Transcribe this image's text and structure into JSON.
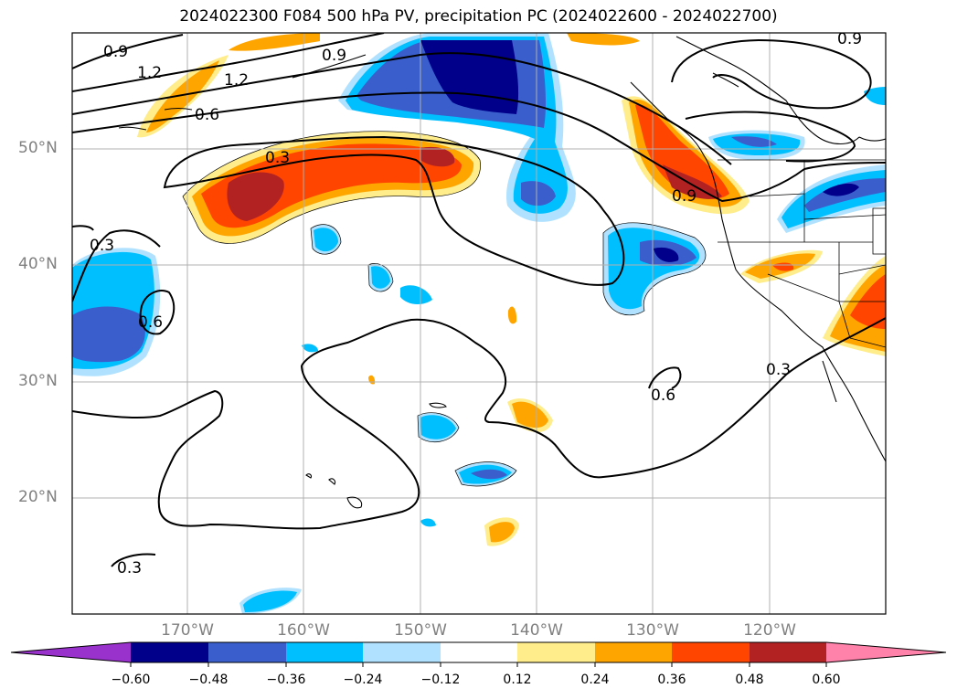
{
  "title": "2024022300 F084 500 hPa PV, precipitation PC (2024022600 - 2024022700)",
  "lat_labels": [
    "50°N",
    "40°N",
    "30°N",
    "20°N"
  ],
  "lon_labels": [
    "170°W",
    "160°W",
    "150°W",
    "140°W",
    "130°W",
    "120°W"
  ],
  "contour_labels": [
    "0.9",
    "1.2",
    "1.2",
    "0.9",
    "0.6",
    "0.3",
    "0.3",
    "0.6",
    "0.9",
    "0.9",
    "0.3",
    "0.6",
    "0.3"
  ],
  "colorbar": {
    "ticks": [
      "−0.60",
      "−0.48",
      "−0.36",
      "−0.24",
      "−0.12",
      "0.12",
      "0.24",
      "0.36",
      "0.48",
      "0.60"
    ],
    "colors": [
      "#9932cc",
      "#00008b",
      "#3a5fcd",
      "#00bfff",
      "#b0e2ff",
      "#ffffff",
      "#ffec8b",
      "#ffa500",
      "#ff4500",
      "#b22222",
      "#ff82ab"
    ]
  }
}
